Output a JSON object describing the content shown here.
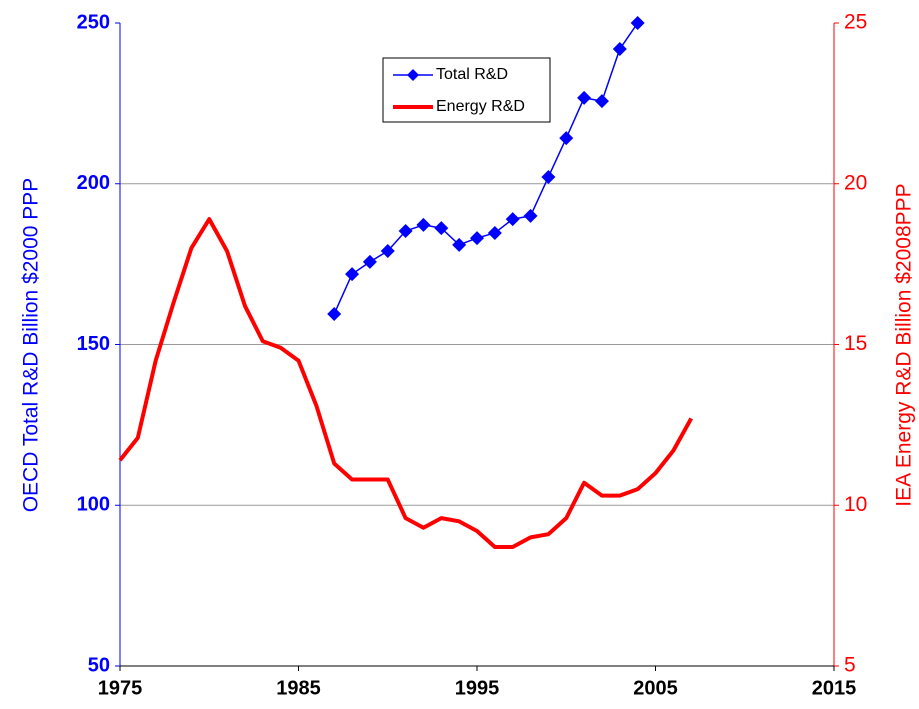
{
  "chart_data": {
    "type": "line",
    "y_label": "OECD Total R&D Billion $2000 PPP",
    "y2_label": "IEA Energy R&D Billion $2008PPP",
    "xlim": [
      1975,
      2015
    ],
    "xticks": [
      1975,
      1985,
      1995,
      2005,
      2015
    ],
    "ylim": [
      50,
      250
    ],
    "yticks": [
      50,
      100,
      150,
      200,
      250
    ],
    "y2lim": [
      5,
      25
    ],
    "y2ticks": [
      5,
      10,
      15,
      20,
      25
    ],
    "grid": true,
    "legend": "top",
    "series": [
      {
        "name": "Total R&D",
        "color": "#0000ff",
        "marker": "diamond",
        "x": [
          1987,
          1988,
          1989,
          1990,
          1991,
          1992,
          1993,
          1994,
          1995,
          1996,
          1997,
          1998,
          1999,
          2000,
          2001,
          2002,
          2003,
          2004
        ],
        "values": [
          159.5,
          171.9,
          175.7,
          179.1,
          185.3,
          187.2,
          186.2,
          181,
          183.1,
          184.7,
          189.0,
          190,
          202.1,
          214.2,
          226.7,
          225.7,
          241.9,
          250
        ]
      },
      {
        "name": "Energy R&D",
        "color": "#ff0000",
        "axis": "y2",
        "x": [
          1975,
          1976,
          1977,
          1978,
          1979,
          1980,
          1981,
          1982,
          1983,
          1984,
          1985,
          1986,
          1987,
          1988,
          1989,
          1990,
          1991,
          1992,
          1993,
          1994,
          1995,
          1996,
          1997,
          1998,
          1999,
          2000,
          2001,
          2002,
          2003,
          2004,
          2005,
          2006,
          2007
        ],
        "values": [
          11.4,
          12.1,
          14.5,
          16.3,
          18.0,
          18.9,
          17.9,
          16.2,
          15.1,
          14.9,
          14.5,
          13.1,
          11.3,
          10.8,
          10.8,
          10.8,
          9.6,
          9.3,
          9.6,
          9.5,
          9.2,
          8.7,
          8.7,
          9.0,
          9.1,
          9.6,
          10.7,
          10.3,
          10.3,
          10.5,
          11.0,
          11.7,
          12.7
        ]
      }
    ]
  }
}
